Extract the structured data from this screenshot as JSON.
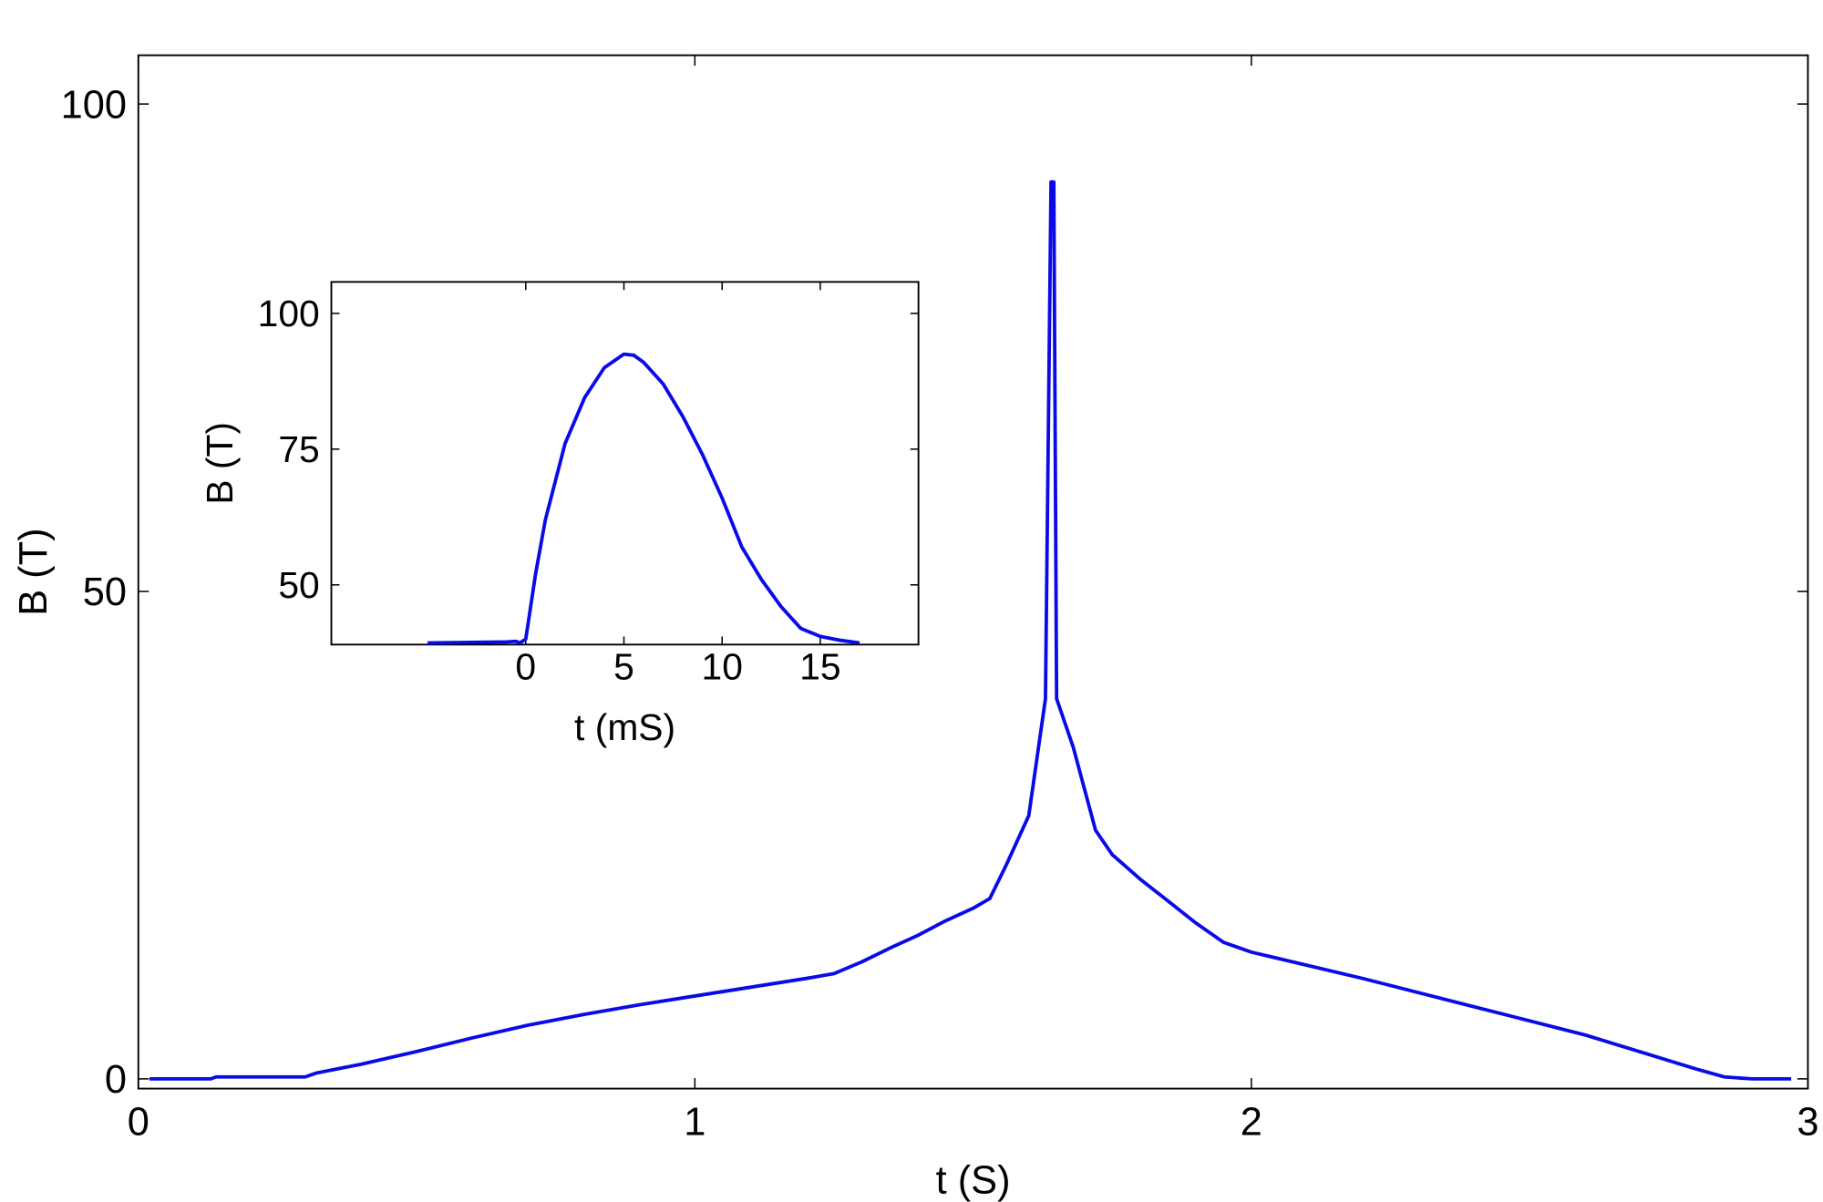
{
  "chart_data": [
    {
      "type": "line",
      "x_label": "t (S)",
      "y_label": "B (T)",
      "xlim": [
        0,
        3
      ],
      "ylim": [
        -1,
        105
      ],
      "xticks": [
        0,
        1,
        2,
        3
      ],
      "yticks": [
        0,
        50,
        100
      ],
      "x": [
        0.02,
        0.13,
        0.14,
        0.3,
        0.32,
        0.4,
        0.5,
        0.6,
        0.7,
        0.8,
        0.9,
        1.0,
        1.1,
        1.2,
        1.25,
        1.3,
        1.35,
        1.4,
        1.45,
        1.5,
        1.53,
        1.56,
        1.6,
        1.63,
        1.64,
        1.645,
        1.65,
        1.68,
        1.72,
        1.75,
        1.8,
        1.9,
        1.95,
        2.0,
        2.2,
        2.4,
        2.6,
        2.8,
        2.85,
        2.9,
        2.97
      ],
      "series": [
        {
          "color": "#0a0ae6",
          "values": [
            0,
            0,
            0.2,
            0.2,
            0.6,
            1.5,
            2.8,
            4.2,
            5.5,
            6.6,
            7.6,
            8.5,
            9.4,
            10.3,
            10.8,
            12,
            13.4,
            14.7,
            16.2,
            17.5,
            18.5,
            22,
            27,
            39,
            92,
            92,
            39,
            34,
            25.5,
            23,
            20.5,
            16,
            14,
            13,
            10.3,
            7.4,
            4.5,
            1,
            0.2,
            0,
            0
          ]
        }
      ]
    },
    {
      "type": "line",
      "x_label": "t (mS)",
      "y_label": "B (T)",
      "xlim": [
        -9.9,
        20
      ],
      "ylim": [
        39,
        105.8
      ],
      "xticks": [
        0,
        5,
        10,
        15
      ],
      "yticks": [
        50,
        75,
        100
      ],
      "x": [
        -5,
        -1,
        -0.5,
        -0.3,
        0,
        0.5,
        1,
        2,
        3,
        4,
        5,
        5.5,
        6,
        7,
        8,
        9,
        10,
        11,
        12,
        13,
        14,
        15,
        16,
        17
      ],
      "series": [
        {
          "color": "#0a0ae6",
          "values": [
            39.3,
            39.5,
            39.6,
            39.3,
            40,
            52,
            62,
            76,
            84.5,
            90,
            92.5,
            92.3,
            91,
            87,
            81,
            74,
            66,
            57,
            51,
            46,
            42,
            40.5,
            39.8,
            39.3
          ]
        }
      ]
    }
  ]
}
